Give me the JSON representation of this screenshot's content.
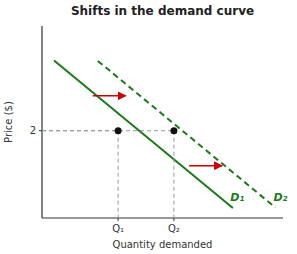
{
  "chart_data": {
    "type": "line",
    "title": "Shifts in the demand curve",
    "x_label": "Quantity demanded",
    "y_label": "Price ($)",
    "series": [
      {
        "name": "D₁",
        "x": [
          0.5,
          7.5
        ],
        "values": [
          4.5,
          0.3
        ],
        "color": "#1a7a1a",
        "line_style": "solid"
      },
      {
        "name": "D₂",
        "x": [
          2.2,
          9.2
        ],
        "values": [
          4.5,
          0.3
        ],
        "color": "#1a7a1a",
        "line_style": "dashed"
      },
      {
        "type": "scatter",
        "x": [
          3.0,
          5.2
        ],
        "values": [
          2.5,
          2.5
        ],
        "color": "#111111",
        "marker": "circle"
      }
    ],
    "arrows": [
      {
        "x": [
          2.0,
          3.3
        ],
        "y": [
          3.5,
          3.5
        ],
        "color": "#cc0000"
      },
      {
        "x": [
          5.8,
          7.1
        ],
        "y": [
          1.5,
          1.5
        ],
        "color": "#cc0000"
      }
    ],
    "xlim": [
      0,
      9.5
    ],
    "ylim": [
      0,
      5.5
    ],
    "xticks": [
      {
        "value": 3.0,
        "label": "Q₁"
      },
      {
        "value": 5.2,
        "label": "Q₂"
      }
    ],
    "yticks": [
      {
        "value": 2.5,
        "label": "2"
      }
    ]
  }
}
